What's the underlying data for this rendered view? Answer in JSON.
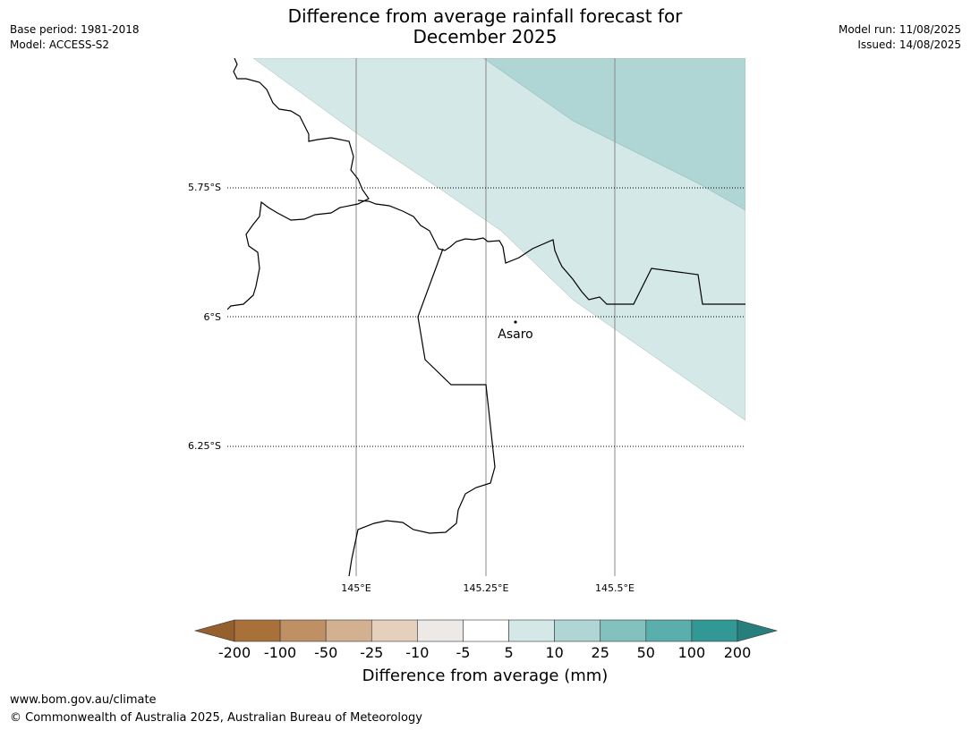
{
  "header": {
    "title_line1": "Difference from average rainfall forecast for",
    "title_line2": "December 2025",
    "base_period": "Base period: 1981-2018",
    "model": "Model: ACCESS-S2",
    "model_run": "Model run: 11/08/2025",
    "issued": "Issued: 14/08/2025"
  },
  "map": {
    "latitude_labels": [
      "5.75°S",
      "6°S",
      "6.25°S"
    ],
    "longitude_labels": [
      "145°E",
      "145.25°E",
      "145.5°E"
    ],
    "place": {
      "name": "Asaro"
    }
  },
  "legend": {
    "title": "Difference from average (mm)",
    "tick_labels": [
      "-200",
      "-100",
      "-50",
      "-25",
      "-10",
      "-5",
      "5",
      "10",
      "25",
      "50",
      "100",
      "200"
    ],
    "bin_colors": [
      "#a9713a",
      "#c09065",
      "#d3b08f",
      "#e4d0bd",
      "#ece9e6",
      "#ffffff",
      "#d4e8e7",
      "#afd5d5",
      "#83c1be",
      "#5aaeac",
      "#329895"
    ],
    "under_color": "#965f2e",
    "over_color": "#267e7d"
  },
  "footer": {
    "url": "www.bom.gov.au/climate",
    "copyright": "© Commonwealth of Australia 2025, Australian Bureau of Meteorology"
  }
}
